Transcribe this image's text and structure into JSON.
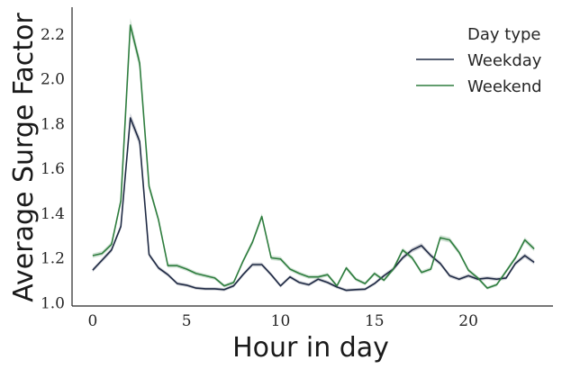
{
  "chart_data": {
    "type": "line",
    "title": "",
    "xlabel": "Hour in day",
    "ylabel": "Average Surge Factor",
    "xlim": [
      -1.1,
      24.5
    ],
    "ylim": [
      0.985,
      2.32
    ],
    "xticks": [
      0,
      5,
      10,
      15,
      20
    ],
    "xtick_labels": [
      "0",
      "5",
      "10",
      "15",
      "20"
    ],
    "yticks": [
      1.0,
      1.2,
      1.4,
      1.6,
      1.8,
      2.0,
      2.2
    ],
    "ytick_labels": [
      "1.0",
      "1.2",
      "1.4",
      "1.6",
      "1.8",
      "2.0",
      "2.2"
    ],
    "grid": false,
    "legend": {
      "title": "Day type",
      "position": "top-right"
    },
    "x": [
      0,
      0.5,
      1,
      1.5,
      2,
      2.5,
      3,
      3.5,
      4,
      4.5,
      5,
      5.5,
      6,
      6.5,
      7,
      7.5,
      8,
      8.5,
      9,
      9.5,
      10,
      10.5,
      11,
      11.5,
      12,
      12.5,
      13,
      13.5,
      14,
      14.5,
      15,
      15.5,
      16,
      16.5,
      17,
      17.5,
      18,
      18.5,
      19,
      19.5,
      20,
      20.5,
      21,
      21.5,
      22,
      22.5,
      23,
      23.5
    ],
    "series": [
      {
        "name": "Weekday",
        "color": "#1f2a44",
        "values": [
          1.145,
          1.19,
          1.235,
          1.34,
          1.825,
          1.72,
          1.215,
          1.155,
          1.125,
          1.085,
          1.078,
          1.065,
          1.062,
          1.062,
          1.058,
          1.075,
          1.125,
          1.17,
          1.17,
          1.125,
          1.075,
          1.115,
          1.09,
          1.08,
          1.105,
          1.09,
          1.07,
          1.055,
          1.058,
          1.06,
          1.085,
          1.12,
          1.15,
          1.2,
          1.235,
          1.255,
          1.21,
          1.175,
          1.12,
          1.105,
          1.12,
          1.105,
          1.11,
          1.105,
          1.11,
          1.175,
          1.21,
          1.18
        ]
      },
      {
        "name": "Weekend",
        "color": "#2e7d3e",
        "values": [
          1.21,
          1.22,
          1.26,
          1.455,
          2.24,
          2.07,
          1.52,
          1.37,
          1.165,
          1.165,
          1.15,
          1.13,
          1.12,
          1.11,
          1.075,
          1.09,
          1.185,
          1.27,
          1.385,
          1.2,
          1.195,
          1.15,
          1.13,
          1.115,
          1.115,
          1.125,
          1.075,
          1.155,
          1.105,
          1.085,
          1.13,
          1.1,
          1.15,
          1.235,
          1.2,
          1.135,
          1.15,
          1.29,
          1.28,
          1.225,
          1.145,
          1.11,
          1.065,
          1.08,
          1.14,
          1.2,
          1.28,
          1.24
        ]
      }
    ]
  }
}
